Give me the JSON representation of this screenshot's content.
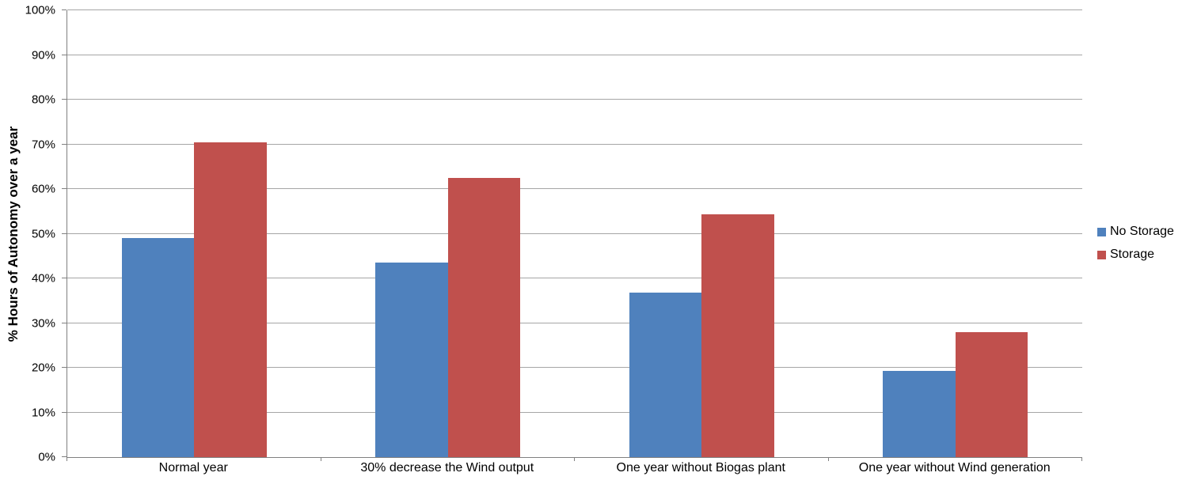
{
  "chart_data": {
    "type": "bar",
    "categories": [
      "Normal year",
      "30% decrease the Wind output",
      "One year without Biogas plant",
      "One year without Wind generation"
    ],
    "series": [
      {
        "name": "No Storage",
        "color": "#4F81BD",
        "values": [
          49.0,
          43.5,
          36.8,
          19.3
        ]
      },
      {
        "name": "Storage",
        "color": "#C0504D",
        "values": [
          70.5,
          62.5,
          54.4,
          27.9
        ]
      }
    ],
    "ylabel": "% Hours of Autonomy over a year",
    "ylim": [
      0,
      100
    ],
    "ytick_step": 10,
    "ytick_labels": [
      "0%",
      "10%",
      "20%",
      "30%",
      "40%",
      "50%",
      "60%",
      "70%",
      "80%",
      "90%",
      "100%"
    ],
    "grid": true,
    "legend_position": "right",
    "colors": {
      "grid": "#A6A6A6",
      "axis": "#808080",
      "text": "#000000",
      "background": "#FFFFFF"
    }
  }
}
